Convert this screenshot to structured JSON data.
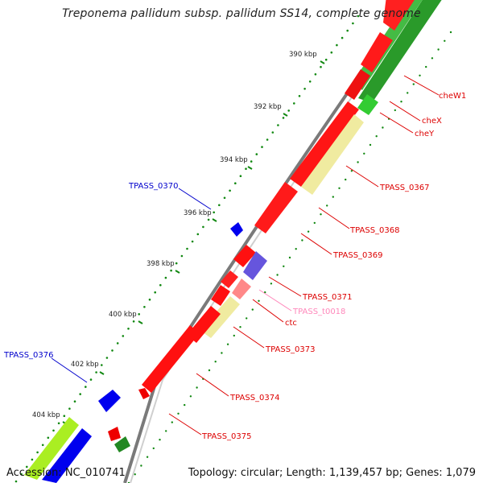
{
  "title": "Treponema pallidum subsp. pallidum SS14, complete genome",
  "footer": {
    "accession": "Accession: NC_010741",
    "summary": "Topology: circular; Length: 1,139,457 bp; Genes: 1,079"
  },
  "scale": [
    "390 kbp",
    "392 kbp",
    "394 kbp",
    "396 kbp",
    "398 kbp",
    "400 kbp",
    "402 kbp",
    "404 kbp"
  ],
  "labels": [
    "cheW1",
    "cheX",
    "cheY",
    "TPASS_0367",
    "TPASS_0368",
    "TPASS_0369",
    "TPASS_0370",
    "TPASS_0371",
    "TPASS_t0018",
    "ctc",
    "TPASS_0373",
    "TPASS_0374",
    "TPASS_0375",
    "TPASS_0376"
  ],
  "colors": {
    "forward_cds": "#ff0000",
    "reverse_cds": "#0000ee",
    "trna": "#ff8888",
    "gene_feature_light": "#f0eba0",
    "gene_feature_green": "#33cc33",
    "gene_feature_lime": "#aaee22",
    "label_red": "#dd0000",
    "label_blue": "#0000cc",
    "label_pink": "#ff88bb",
    "scale_green": "#008800",
    "backbone": "#888888"
  }
}
